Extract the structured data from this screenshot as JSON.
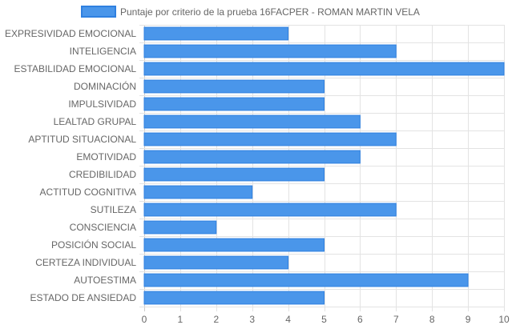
{
  "chart_data": {
    "type": "bar",
    "orientation": "horizontal",
    "legend": {
      "position": "top",
      "label": "Puntaje por criterio de la prueba 16FACPER - ROMAN MARTIN VELA"
    },
    "categories": [
      "EXPRESIVIDAD EMOCIONAL",
      "INTELIGENCIA",
      "ESTABILIDAD EMOCIONAL",
      "DOMINACIÓN",
      "IMPULSIVIDAD",
      "LEALTAD GRUPAL",
      "APTITUD SITUACIONAL",
      "EMOTIVIDAD",
      "CREDIBILIDAD",
      "ACTITUD COGNITIVA",
      "SUTILEZA",
      "CONSCIENCIA",
      "POSICIÓN SOCIAL",
      "CERTEZA INDIVIDUAL",
      "AUTOESTIMA",
      "ESTADO DE ANSIEDAD"
    ],
    "series": [
      {
        "name": "Puntaje por criterio de la prueba 16FACPER - ROMAN MARTIN VELA",
        "values": [
          4,
          7,
          10,
          5,
          5,
          6,
          7,
          6,
          5,
          3,
          7,
          2,
          5,
          4,
          9,
          5
        ]
      }
    ],
    "xlim": [
      0,
      10
    ],
    "xticks": [
      "0",
      "1",
      "2",
      "3",
      "4",
      "5",
      "6",
      "7",
      "8",
      "9",
      "10"
    ],
    "grid": true,
    "colors": {
      "bar_fill": "#4a96ea",
      "bar_stroke": "#2f80e0",
      "grid": "#e3e3e3",
      "axis": "#cccccc",
      "text": "#666666"
    }
  }
}
